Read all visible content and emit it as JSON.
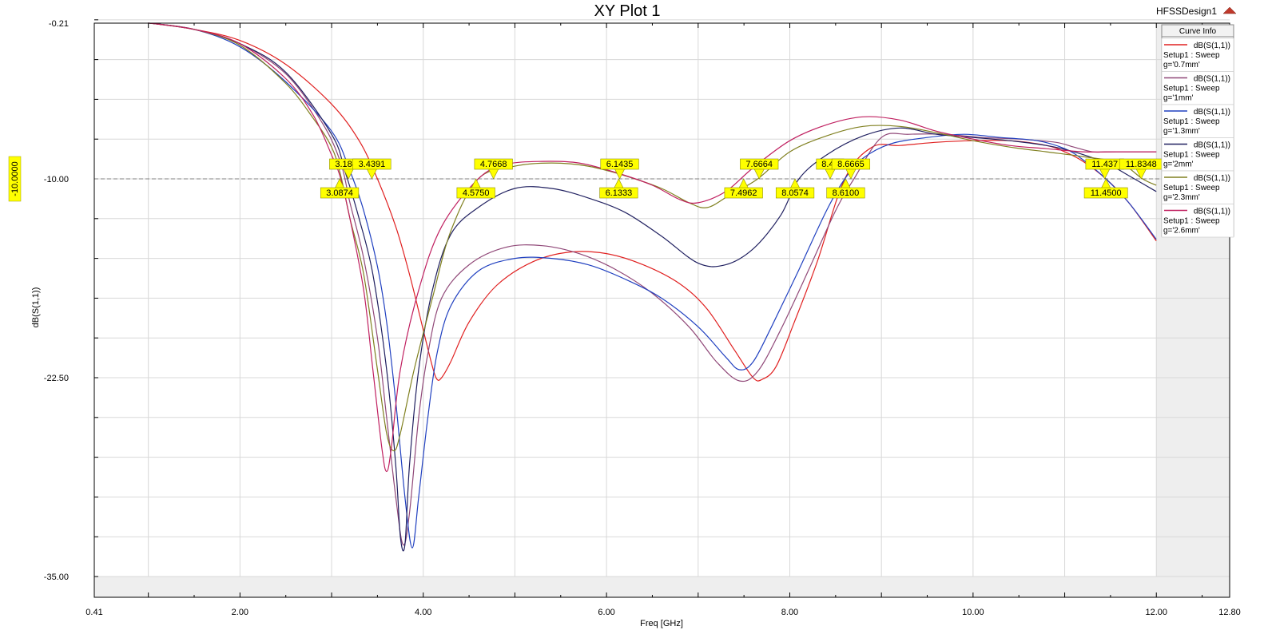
{
  "window": {
    "design_name": "HFSSDesign1"
  },
  "legend": {
    "header": "Curve Info",
    "entries": [
      {
        "line1": "dB(S(1,1))",
        "line2": "Setup1 : Sweep",
        "line3": "g='0.7mm'"
      },
      {
        "line1": "dB(S(1,1))",
        "line2": "Setup1 : Sweep",
        "line3": "g='1mm'"
      },
      {
        "line1": "dB(S(1,1))",
        "line2": "Setup1 : Sweep",
        "line3": "g='1.3mm'"
      },
      {
        "line1": "dB(S(1,1))",
        "line2": "Setup1 : Sweep",
        "line3": "g='2mm'"
      },
      {
        "line1": "dB(S(1,1))",
        "line2": "Setup1 : Sweep",
        "line3": "g='2.3mm'"
      },
      {
        "line1": "dB(S(1,1))",
        "line2": "Setup1 : Sweep",
        "line3": "g='2.6mm'"
      }
    ]
  },
  "chart_data": {
    "type": "line",
    "title": "XY Plot 1",
    "xlabel": "Freq [GHz]",
    "ylabel": "dB(S(1,1))",
    "xlim": [
      0.41,
      12.8
    ],
    "ylim": [
      -35.0,
      -0.21
    ],
    "x_tick_labels": [
      {
        "value": 0.41,
        "label": "0.41"
      },
      {
        "value": 2.0,
        "label": "2.00"
      },
      {
        "value": 4.0,
        "label": "4.00"
      },
      {
        "value": 6.0,
        "label": "6.00"
      },
      {
        "value": 8.0,
        "label": "8.00"
      },
      {
        "value": 10.0,
        "label": "10.00"
      },
      {
        "value": 12.0,
        "label": "12.00"
      },
      {
        "value": 12.8,
        "label": "12.80"
      }
    ],
    "y_tick_labels": [
      {
        "value": -0.21,
        "label": "-0.21"
      },
      {
        "value": -10.0,
        "label": "-10.00"
      },
      {
        "value": -22.5,
        "label": "-22.50"
      },
      {
        "value": -35.0,
        "label": "-35.00"
      }
    ],
    "reference_line": {
      "value": -10.0,
      "label": "-10.0000"
    },
    "grid": true,
    "legend_position": "top-right",
    "series": [
      {
        "name": "g='0.7mm'",
        "color": "#e02020",
        "points": [
          [
            1.0,
            -0.2
          ],
          [
            1.5,
            -0.6
          ],
          [
            2.0,
            -1.3
          ],
          [
            2.5,
            -2.8
          ],
          [
            3.0,
            -5.3
          ],
          [
            3.3,
            -7.6
          ],
          [
            3.5,
            -10.0
          ],
          [
            3.7,
            -13.0
          ],
          [
            3.85,
            -16.0
          ],
          [
            4.0,
            -19.5
          ],
          [
            4.1,
            -21.8
          ],
          [
            4.15,
            -22.6
          ],
          [
            4.2,
            -22.5
          ],
          [
            4.3,
            -21.5
          ],
          [
            4.5,
            -19.0
          ],
          [
            4.8,
            -16.7
          ],
          [
            5.2,
            -15.2
          ],
          [
            5.6,
            -14.6
          ],
          [
            6.0,
            -14.7
          ],
          [
            6.4,
            -15.4
          ],
          [
            6.8,
            -16.6
          ],
          [
            7.1,
            -18.2
          ],
          [
            7.4,
            -20.8
          ],
          [
            7.6,
            -22.5
          ],
          [
            7.7,
            -22.6
          ],
          [
            7.85,
            -21.8
          ],
          [
            8.05,
            -19.0
          ],
          [
            8.3,
            -15.2
          ],
          [
            8.6,
            -10.0
          ],
          [
            8.9,
            -8.0
          ],
          [
            9.2,
            -7.9
          ],
          [
            9.6,
            -7.7
          ],
          [
            10.0,
            -7.6
          ],
          [
            10.4,
            -7.6
          ],
          [
            10.8,
            -7.9
          ],
          [
            11.0,
            -8.3
          ],
          [
            11.2,
            -8.9
          ],
          [
            11.45,
            -10.0
          ],
          [
            11.7,
            -11.5
          ],
          [
            12.0,
            -13.9
          ]
        ]
      },
      {
        "name": "g='1mm'",
        "color": "#904878",
        "points": [
          [
            1.0,
            -0.2
          ],
          [
            1.5,
            -0.6
          ],
          [
            2.0,
            -1.5
          ],
          [
            2.5,
            -3.4
          ],
          [
            2.9,
            -6.5
          ],
          [
            3.1,
            -9.0
          ],
          [
            3.2,
            -11.5
          ],
          [
            3.35,
            -15.0
          ],
          [
            3.5,
            -20.0
          ],
          [
            3.6,
            -25.0
          ],
          [
            3.7,
            -30.0
          ],
          [
            3.78,
            -33.0
          ],
          [
            3.85,
            -31.0
          ],
          [
            3.95,
            -25.0
          ],
          [
            4.05,
            -21.0
          ],
          [
            4.2,
            -17.5
          ],
          [
            4.5,
            -15.4
          ],
          [
            4.9,
            -14.3
          ],
          [
            5.3,
            -14.2
          ],
          [
            5.7,
            -14.7
          ],
          [
            6.1,
            -15.7
          ],
          [
            6.5,
            -17.2
          ],
          [
            6.9,
            -19.3
          ],
          [
            7.2,
            -21.5
          ],
          [
            7.45,
            -22.7
          ],
          [
            7.65,
            -22.1
          ],
          [
            7.9,
            -19.5
          ],
          [
            8.2,
            -15.8
          ],
          [
            8.5,
            -12.0
          ],
          [
            8.7,
            -10.0
          ],
          [
            9.0,
            -7.4
          ],
          [
            9.3,
            -7.2
          ],
          [
            9.7,
            -7.2
          ],
          [
            10.1,
            -7.4
          ],
          [
            10.5,
            -7.5
          ],
          [
            10.9,
            -7.7
          ],
          [
            11.1,
            -8.0
          ],
          [
            11.3,
            -8.3
          ],
          [
            11.45,
            -8.3
          ],
          [
            11.7,
            -8.3
          ],
          [
            12.0,
            -8.3
          ]
        ]
      },
      {
        "name": "g='1.3mm'",
        "color": "#2040c0",
        "points": [
          [
            1.0,
            -0.2
          ],
          [
            1.5,
            -0.6
          ],
          [
            2.0,
            -1.7
          ],
          [
            2.5,
            -3.9
          ],
          [
            3.0,
            -7.0
          ],
          [
            3.2,
            -9.5
          ],
          [
            3.35,
            -12.0
          ],
          [
            3.5,
            -15.5
          ],
          [
            3.6,
            -19.0
          ],
          [
            3.7,
            -24.0
          ],
          [
            3.8,
            -30.0
          ],
          [
            3.88,
            -33.2
          ],
          [
            3.95,
            -30.0
          ],
          [
            4.05,
            -25.0
          ],
          [
            4.15,
            -21.0
          ],
          [
            4.3,
            -18.0
          ],
          [
            4.6,
            -15.8
          ],
          [
            5.0,
            -15.0
          ],
          [
            5.4,
            -15.0
          ],
          [
            5.8,
            -15.4
          ],
          [
            6.2,
            -16.3
          ],
          [
            6.6,
            -17.5
          ],
          [
            7.0,
            -19.3
          ],
          [
            7.3,
            -21.2
          ],
          [
            7.45,
            -22.0
          ],
          [
            7.6,
            -21.5
          ],
          [
            7.8,
            -19.3
          ],
          [
            8.1,
            -15.7
          ],
          [
            8.4,
            -12.0
          ],
          [
            8.6,
            -10.0
          ],
          [
            8.8,
            -8.7
          ],
          [
            9.1,
            -7.8
          ],
          [
            9.5,
            -7.4
          ],
          [
            9.9,
            -7.2
          ],
          [
            10.3,
            -7.4
          ],
          [
            10.7,
            -7.6
          ],
          [
            11.0,
            -8.1
          ],
          [
            11.2,
            -8.8
          ],
          [
            11.45,
            -10.0
          ],
          [
            11.7,
            -11.5
          ],
          [
            12.0,
            -13.8
          ]
        ]
      },
      {
        "name": "g='2mm'",
        "color": "#202060",
        "points": [
          [
            1.0,
            -0.2
          ],
          [
            1.5,
            -0.6
          ],
          [
            2.0,
            -1.5
          ],
          [
            2.5,
            -3.3
          ],
          [
            3.0,
            -7.2
          ],
          [
            3.15,
            -9.6
          ],
          [
            3.3,
            -12.5
          ],
          [
            3.45,
            -16.0
          ],
          [
            3.6,
            -22.0
          ],
          [
            3.7,
            -28.0
          ],
          [
            3.75,
            -32.5
          ],
          [
            3.8,
            -33.0
          ],
          [
            3.85,
            -28.0
          ],
          [
            3.95,
            -22.0
          ],
          [
            4.1,
            -17.0
          ],
          [
            4.3,
            -13.5
          ],
          [
            4.6,
            -11.8
          ],
          [
            5.0,
            -10.6
          ],
          [
            5.4,
            -10.6
          ],
          [
            5.8,
            -11.2
          ],
          [
            6.2,
            -12.1
          ],
          [
            6.6,
            -13.6
          ],
          [
            7.0,
            -15.3
          ],
          [
            7.3,
            -15.4
          ],
          [
            7.6,
            -14.4
          ],
          [
            7.9,
            -12.3
          ],
          [
            8.1,
            -10.0
          ],
          [
            8.4,
            -8.5
          ],
          [
            8.8,
            -7.3
          ],
          [
            9.2,
            -6.8
          ],
          [
            9.6,
            -7.2
          ],
          [
            10.0,
            -7.4
          ],
          [
            10.4,
            -7.6
          ],
          [
            10.8,
            -7.9
          ],
          [
            11.1,
            -8.3
          ],
          [
            11.45,
            -9.0
          ],
          [
            11.7,
            -9.8
          ],
          [
            12.0,
            -10.8
          ]
        ]
      },
      {
        "name": "g='2.3mm'",
        "color": "#808020",
        "points": [
          [
            1.0,
            -0.2
          ],
          [
            1.5,
            -0.6
          ],
          [
            2.0,
            -1.6
          ],
          [
            2.5,
            -4.0
          ],
          [
            2.8,
            -6.2
          ],
          [
            3.0,
            -8.0
          ],
          [
            3.1,
            -9.8
          ],
          [
            3.2,
            -12.5
          ],
          [
            3.35,
            -16.0
          ],
          [
            3.5,
            -22.0
          ],
          [
            3.6,
            -26.0
          ],
          [
            3.68,
            -27.1
          ],
          [
            3.75,
            -26.0
          ],
          [
            3.9,
            -22.0
          ],
          [
            4.1,
            -17.5
          ],
          [
            4.3,
            -13.3
          ],
          [
            4.6,
            -10.0
          ],
          [
            5.0,
            -9.2
          ],
          [
            5.4,
            -9.0
          ],
          [
            5.8,
            -9.2
          ],
          [
            6.2,
            -9.8
          ],
          [
            6.6,
            -10.6
          ],
          [
            6.9,
            -11.5
          ],
          [
            7.1,
            -11.8
          ],
          [
            7.35,
            -11.0
          ],
          [
            7.65,
            -10.0
          ],
          [
            8.0,
            -8.3
          ],
          [
            8.4,
            -7.3
          ],
          [
            8.8,
            -6.7
          ],
          [
            9.2,
            -6.7
          ],
          [
            9.6,
            -7.1
          ],
          [
            10.0,
            -7.6
          ],
          [
            10.4,
            -8.0
          ],
          [
            10.8,
            -8.3
          ],
          [
            11.2,
            -8.6
          ],
          [
            11.6,
            -9.0
          ],
          [
            11.85,
            -10.0
          ],
          [
            12.0,
            -10.4
          ]
        ]
      },
      {
        "name": "g='2.6mm'",
        "color": "#c02060",
        "points": [
          [
            1.0,
            -0.2
          ],
          [
            1.5,
            -0.6
          ],
          [
            2.0,
            -1.5
          ],
          [
            2.5,
            -3.7
          ],
          [
            2.8,
            -6.0
          ],
          [
            3.0,
            -8.5
          ],
          [
            3.1,
            -10.0
          ],
          [
            3.2,
            -12.5
          ],
          [
            3.35,
            -17.0
          ],
          [
            3.45,
            -22.0
          ],
          [
            3.55,
            -27.0
          ],
          [
            3.6,
            -28.4
          ],
          [
            3.65,
            -27.0
          ],
          [
            3.75,
            -22.0
          ],
          [
            3.95,
            -17.0
          ],
          [
            4.2,
            -13.0
          ],
          [
            4.6,
            -10.0
          ],
          [
            4.9,
            -9.1
          ],
          [
            5.3,
            -8.9
          ],
          [
            5.7,
            -9.0
          ],
          [
            6.1,
            -9.6
          ],
          [
            6.5,
            -10.4
          ],
          [
            6.8,
            -11.3
          ],
          [
            7.0,
            -11.5
          ],
          [
            7.3,
            -10.8
          ],
          [
            7.6,
            -9.3
          ],
          [
            8.0,
            -7.6
          ],
          [
            8.4,
            -6.6
          ],
          [
            8.8,
            -6.1
          ],
          [
            9.2,
            -6.3
          ],
          [
            9.6,
            -7.0
          ],
          [
            10.0,
            -7.5
          ],
          [
            10.4,
            -7.9
          ],
          [
            10.8,
            -8.1
          ],
          [
            11.2,
            -8.3
          ],
          [
            11.6,
            -8.3
          ],
          [
            12.0,
            -8.3
          ]
        ]
      }
    ],
    "markers": [
      {
        "label": "3.1844",
        "x": 3.1844,
        "y": -10.0,
        "pos": "above"
      },
      {
        "label": "3.4391",
        "x": 3.4391,
        "y": -10.0,
        "pos": "above"
      },
      {
        "label": "3.0874",
        "x": 3.0874,
        "y": -10.0,
        "pos": "below"
      },
      {
        "label": "4.7668",
        "x": 4.7668,
        "y": -10.0,
        "pos": "above"
      },
      {
        "label": "4.5750",
        "x": 4.575,
        "y": -10.0,
        "pos": "below"
      },
      {
        "label": "6.1435",
        "x": 6.1435,
        "y": -10.0,
        "pos": "above"
      },
      {
        "label": "6.1333",
        "x": 6.1333,
        "y": -10.0,
        "pos": "below"
      },
      {
        "label": "7.6664",
        "x": 7.6664,
        "y": -10.0,
        "pos": "above"
      },
      {
        "label": "7.4962",
        "x": 7.4962,
        "y": -10.0,
        "pos": "below"
      },
      {
        "label": "8.0574",
        "x": 8.0574,
        "y": -10.0,
        "pos": "below"
      },
      {
        "label": "8.44",
        "x": 8.44,
        "y": -10.0,
        "pos": "above"
      },
      {
        "label": "8.6665",
        "x": 8.6665,
        "y": -10.0,
        "pos": "above"
      },
      {
        "label": "8.6100",
        "x": 8.61,
        "y": -10.0,
        "pos": "below"
      },
      {
        "label": "11.437",
        "x": 11.437,
        "y": -10.0,
        "pos": "above"
      },
      {
        "label": "11.8348",
        "x": 11.8348,
        "y": -10.0,
        "pos": "above"
      },
      {
        "label": "11.4500",
        "x": 11.45,
        "y": -10.0,
        "pos": "below"
      }
    ]
  }
}
